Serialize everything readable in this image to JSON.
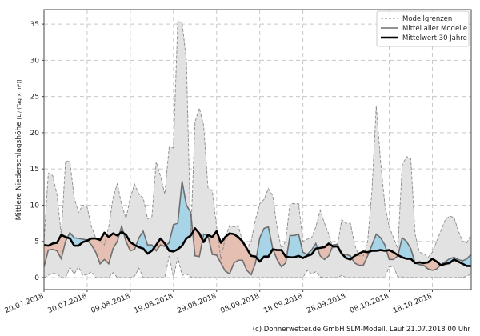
{
  "chart_data": {
    "type": "area",
    "title": "",
    "xlabel": "",
    "ylabel": "Mittlere Niederschlagshöhe",
    "ylabel_unit": "[L / (Tag × m²)]",
    "start_date": "20.07.2018",
    "x_tick_labels": [
      "20.07.2018",
      "30.07.2018",
      "09.08.2018",
      "19.08.2018",
      "29.08.2018",
      "08.09.2018",
      "18.09.2018",
      "28.09.2018",
      "08.10.2018",
      "18.10.2018"
    ],
    "x_tick_days": [
      0,
      10,
      20,
      30,
      40,
      50,
      60,
      70,
      80,
      90
    ],
    "xlim_days": [
      0,
      99
    ],
    "y_ticks": [
      0,
      5,
      10,
      15,
      20,
      25,
      30,
      35
    ],
    "ylim": [
      -1.66,
      37
    ],
    "grid": true,
    "legend_position": "top-right",
    "legend": [
      {
        "label": "Modellgrenzen",
        "style": "dashed-grey"
      },
      {
        "label": "Mittel aller Modelle",
        "style": "solid-grey"
      },
      {
        "label": "Mittelwert 30 Jahre",
        "style": "solid-black-thick"
      }
    ],
    "colors": {
      "band": "#e2e2e2",
      "bandline": "#8a8a8a",
      "mean": "#6e6e6e",
      "clim": "#000000",
      "above": "#a8d4e8",
      "below": "#e6bfb3"
    },
    "series": [
      {
        "name": "Modellgrenzen max",
        "values": [
          5,
          14.4,
          14.1,
          11.5,
          6,
          16.1,
          16,
          11,
          9,
          10,
          9.7,
          7,
          5.5,
          5,
          4.5,
          7,
          11,
          13,
          10,
          8.2,
          11,
          12.9,
          11.5,
          11,
          8.1,
          8.4,
          16,
          14,
          11.5,
          18,
          17.9,
          35.4,
          35.2,
          30,
          5.5,
          21.5,
          23.4,
          21,
          12.4,
          12,
          7,
          2.5,
          5.5,
          7.2,
          7,
          7.2,
          5,
          4,
          5,
          8,
          10.2,
          10.8,
          12.3,
          11.3,
          7,
          4,
          5,
          10.2,
          10.2,
          10.2,
          5,
          5.3,
          5.5,
          7,
          9.3,
          7.5,
          6,
          4,
          4.5,
          8,
          7.5,
          7.5,
          4.5,
          3,
          3,
          5,
          12,
          23.7,
          16,
          10,
          7,
          5.5,
          4,
          15.5,
          16.7,
          16.4,
          6,
          3.5,
          3.3,
          2.8,
          3.5,
          5,
          6.5,
          8,
          8.5,
          8.3,
          6.5,
          5,
          4.8,
          6
        ]
      },
      {
        "name": "Modellgrenzen min",
        "values": [
          0,
          0.3,
          0.6,
          0.5,
          0,
          0,
          1.4,
          0.5,
          1.5,
          0.3,
          0.4,
          0.8,
          0,
          0,
          0,
          0,
          0.7,
          0,
          0,
          0,
          0,
          0.2,
          1.3,
          0,
          0,
          0,
          0,
          0,
          0,
          3,
          0,
          2.8,
          0.3,
          0.5,
          0.1,
          0,
          0,
          0,
          0,
          0,
          0,
          0,
          0,
          0,
          0,
          0,
          0,
          0,
          0,
          0,
          0,
          0,
          0,
          0,
          0,
          0,
          0,
          0,
          0,
          0,
          0,
          1,
          0.5,
          0.8,
          0.1,
          0,
          0,
          0,
          0,
          0.3,
          0,
          0,
          0,
          0,
          0,
          0,
          0,
          0,
          0,
          0,
          1.5,
          1.5,
          0.1,
          0.1,
          0,
          0,
          0,
          0,
          0,
          0,
          0,
          0,
          0,
          0,
          0,
          0,
          0,
          0,
          0.2,
          0.5
        ]
      },
      {
        "name": "Mittel aller Modelle",
        "values": [
          1.5,
          3.8,
          3.9,
          3.7,
          2.6,
          5,
          6.2,
          5.5,
          5.4,
          5.3,
          5.2,
          4.5,
          3.5,
          1.9,
          2.5,
          1.9,
          4,
          5,
          7.1,
          5,
          3.7,
          3.9,
          5.5,
          6.4,
          4.5,
          4.5,
          3.7,
          4.5,
          4.3,
          4.8,
          7.3,
          7.5,
          13.3,
          10,
          9,
          3,
          2.9,
          6,
          5.8,
          3.2,
          3.1,
          2,
          0.9,
          0.5,
          2,
          2.4,
          2.4,
          1,
          0.4,
          2,
          5.5,
          6.8,
          7,
          4,
          2.5,
          1.5,
          2,
          5.8,
          5.8,
          6,
          3.5,
          3.2,
          3.8,
          4.7,
          3,
          2.5,
          3,
          4.5,
          4.6,
          3.2,
          3.2,
          3,
          2,
          1.7,
          1.7,
          3,
          4.5,
          6,
          5.5,
          4.5,
          2.5,
          2.5,
          3,
          5.5,
          5,
          4,
          2,
          1.8,
          1.7,
          1.2,
          1,
          1.2,
          1.8,
          2.2,
          2.6,
          2.8,
          2.5,
          2.3,
          2.6,
          3.2
        ]
      },
      {
        "name": "Mittelwert 30 Jahre",
        "values": [
          4.5,
          4.4,
          4.7,
          4.8,
          5.9,
          5.6,
          5.4,
          4.4,
          4.4,
          4.9,
          5.1,
          5.4,
          5.4,
          5.2,
          6.2,
          5.6,
          6.1,
          5.8,
          6.3,
          5.9,
          4.9,
          4.5,
          4.2,
          4,
          3.3,
          3.7,
          4.5,
          5.4,
          4.7,
          3.7,
          3.6,
          3.9,
          4.4,
          5.4,
          5.8,
          6.8,
          6.1,
          4.9,
          5.9,
          5.6,
          6.4,
          4.8,
          5.6,
          6.1,
          6,
          5.6,
          5,
          4,
          3,
          2.9,
          2.2,
          2.9,
          2.9,
          3.9,
          3.8,
          3.8,
          2.9,
          2.8,
          2.8,
          3,
          2.7,
          3,
          3.2,
          4,
          4.1,
          4.2,
          4.7,
          4.3,
          4.3,
          3.3,
          2.7,
          2.5,
          3,
          3.3,
          3.6,
          3.5,
          3.7,
          3.7,
          3.8,
          3.7,
          3.8,
          3.5,
          3.1,
          2.8,
          2.6,
          2.6,
          2,
          2.1,
          2,
          2.1,
          2.6,
          2.2,
          1.7,
          1.9,
          2,
          2.5,
          2.2,
          1.9,
          1.6,
          1.6
        ]
      }
    ]
  },
  "footer": "(c) Donnerwetter.de GmbH SLM-Modell, Lauf 21.07.2018 00 Uhr"
}
